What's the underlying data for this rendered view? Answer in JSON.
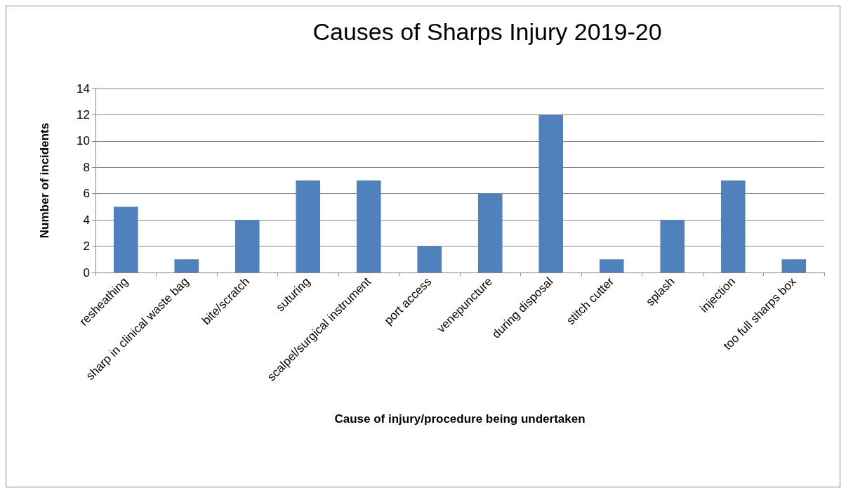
{
  "chart_data": {
    "type": "bar",
    "title": "Causes of Sharps Injury 2019-20",
    "xlabel": "Cause of injury/procedure being undertaken",
    "ylabel": "Number of incidents",
    "categories": [
      "resheathing",
      "sharp in clinical waste bag",
      "bite/scratch",
      "suturing",
      "scalpel/surgical instrument",
      "port access",
      "venepuncture",
      "during disposal",
      "stitch cutter",
      "splash",
      "injection",
      "too full sharps box"
    ],
    "values": [
      5,
      1,
      4,
      7,
      7,
      2,
      6,
      12,
      1,
      4,
      7,
      1
    ],
    "color": "#4f81bd",
    "ylim": [
      0,
      14
    ],
    "yticks": [
      0,
      2,
      4,
      6,
      8,
      10,
      12,
      14
    ],
    "grid": "y"
  }
}
